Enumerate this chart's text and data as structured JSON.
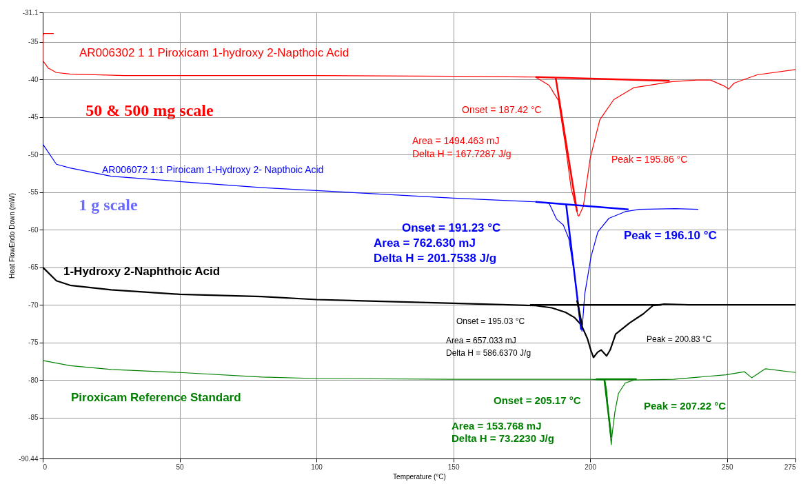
{
  "chart_data": {
    "type": "line",
    "xlabel": "Temperature (°C)",
    "ylabel": "Heat FlowEndo Down (mW)",
    "xlim": [
      0,
      275
    ],
    "ylim": [
      -90.44,
      -31.1
    ],
    "xticks": [
      0,
      50,
      100,
      150,
      200,
      250,
      275
    ],
    "yticks": [
      -31.1,
      -35,
      -40,
      -45,
      -50,
      -55,
      -60,
      -65,
      -70,
      -75,
      -80,
      -85,
      -90.44
    ],
    "grid": true,
    "marker": "none",
    "line_style": "solid",
    "series": [
      {
        "name": "AR006302 1 1 Piroxicam  1-hydroxy 2-Napthoic Acid",
        "color": "#ff0000",
        "x": [
          4,
          0.3,
          0,
          0,
          2,
          5,
          10,
          30,
          100,
          150,
          180,
          185,
          187,
          188.4,
          191,
          193,
          195.5,
          195.86,
          197.5,
          200,
          203.5,
          208.6,
          216,
          230,
          239,
          244,
          249,
          250.6,
          252.6,
          261,
          275
        ],
        "values": [
          -33.9,
          -33.9,
          -34.5,
          -37.5,
          -38.5,
          -39.1,
          -39.3,
          -39.5,
          -39.5,
          -39.6,
          -39.7,
          -40.8,
          -42,
          -42.8,
          -48.9,
          -54.4,
          -58.1,
          -58.2,
          -56.9,
          -50.5,
          -45.4,
          -42.7,
          -41.1,
          -40.3,
          -40.1,
          -40.1,
          -40.9,
          -41.3,
          -40.5,
          -39.4,
          -38.7
        ]
      },
      {
        "name": "AR006072  1:1 Piroicam 1-Hydroxy 2- Napthoic Acid",
        "color": "#0000ff",
        "x": [
          0,
          5,
          10,
          25,
          50,
          80,
          150,
          180,
          185,
          187.7,
          190.2,
          192.2,
          194.2,
          196.5,
          197,
          198,
          200.3,
          202.8,
          206.8,
          212.8,
          218,
          231,
          239.5
        ],
        "values": [
          -48.6,
          -51.3,
          -51.8,
          -52.9,
          -53.6,
          -54.4,
          -55.8,
          -56.3,
          -56.5,
          -58.6,
          -59.4,
          -61.2,
          -65.8,
          -72.3,
          -73.5,
          -68.6,
          -63.6,
          -60.3,
          -58.5,
          -57.6,
          -57.3,
          -57.2,
          -57.3
        ]
      },
      {
        "name": "1-Hydroxy 2-Naphthoic Acid",
        "color": "#000000",
        "x": [
          0,
          5,
          10,
          25,
          50,
          80,
          100,
          150,
          180,
          186,
          191,
          194.3,
          196.8,
          199,
          200.2,
          201.2,
          202.7,
          204,
          206,
          207.3,
          209.3,
          214.4,
          219.4,
          222.9,
          227,
          236,
          275
        ],
        "values": [
          -65,
          -66.8,
          -67.4,
          -68,
          -68.6,
          -68.9,
          -69.3,
          -69.8,
          -70.1,
          -70.4,
          -71,
          -71.7,
          -72.7,
          -74.5,
          -76,
          -77,
          -76.3,
          -76,
          -76.8,
          -76,
          -73.9,
          -72.4,
          -71.2,
          -70.1,
          -69.9,
          -70,
          -70
        ]
      },
      {
        "name": "Piroxicam Reference Standard",
        "color": "#008000",
        "x": [
          0,
          10,
          25,
          50,
          80,
          100,
          150,
          200,
          205.3,
          206,
          206.8,
          207.7,
          208,
          209,
          210.3,
          212.8,
          216,
          230.5,
          249.6,
          256.4,
          259,
          264,
          275
        ],
        "values": [
          -77.4,
          -78.1,
          -78.6,
          -79,
          -79.6,
          -79.8,
          -79.9,
          -79.9,
          -80,
          -81.3,
          -85.2,
          -88.6,
          -87.3,
          -84.3,
          -81.8,
          -80.4,
          -80,
          -79.9,
          -79.3,
          -78.9,
          -79.7,
          -78.5,
          -79
        ]
      },
      {
        "color": "#ff0000",
        "x": [
          180,
          229
        ],
        "values": [
          -39.7,
          -40.2
        ]
      },
      {
        "color": "#ff0000",
        "x": [
          187.4,
          195.2
        ],
        "values": [
          -39.8,
          -57.6
        ]
      },
      {
        "color": "#0000ff",
        "x": [
          180,
          214
        ],
        "values": [
          -56.3,
          -57.3
        ]
      },
      {
        "color": "#0000ff",
        "x": [
          191.2,
          196.7
        ],
        "values": [
          -56.6,
          -73.3
        ]
      },
      {
        "color": "#000000",
        "x": [
          178,
          226
        ],
        "values": [
          -70,
          -70
        ]
      },
      {
        "color": "#000000",
        "x": [
          195.2,
          197
        ],
        "values": [
          -69.4,
          -72.7
        ]
      },
      {
        "color": "#008000",
        "x": [
          202,
          217
        ],
        "values": [
          -79.9,
          -79.9
        ]
      },
      {
        "color": "#008000",
        "x": [
          205.2,
          207.7
        ],
        "values": [
          -80,
          -87.6
        ]
      }
    ],
    "annotations": [
      "50 & 500 mg scale",
      "1 g scale",
      "Onset = 187.42 °C",
      "Area = 1494.463 mJ",
      "Delta H = 167.7287 J/g",
      "Peak = 195.86 °C",
      "Onset = 191.23 °C",
      "Area = 762.630 mJ",
      "Delta H = 201.7538 J/g",
      "Peak = 196.10 °C",
      "Onset = 195.03 °C",
      "Area = 657.033 mJ",
      "Delta H = 586.6370 J/g",
      "Peak = 200.83 °C",
      "Onset = 205.17 °C",
      "Area = 153.768 mJ",
      "Delta H = 73.2230 J/g",
      "Peak = 207.22 °C"
    ]
  }
}
